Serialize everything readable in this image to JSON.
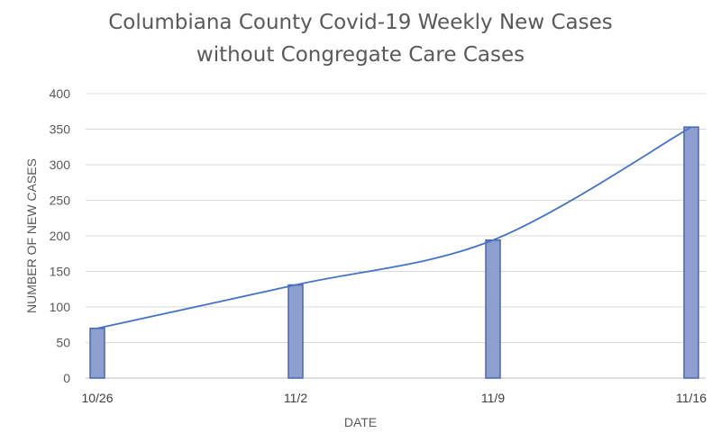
{
  "chart_data": {
    "type": "bar",
    "title": [
      "Columbiana County Covid-19 Weekly New Cases",
      "without Congregate Care Cases"
    ],
    "xlabel": "DATE",
    "ylabel": "NUMBER OF NEW CASES",
    "categories": [
      "10/26",
      "11/2",
      "11/9",
      "11/16"
    ],
    "series": [
      {
        "values": [
          70,
          131,
          194,
          353
        ],
        "color": "#8e9fcf"
      }
    ],
    "trendline": {
      "type": "exponential",
      "color": "#4472c4"
    },
    "ylim": [
      0,
      400
    ],
    "yticks": [
      0,
      50,
      100,
      150,
      200,
      250,
      300,
      350,
      400
    ],
    "grid": true,
    "legend": "none"
  }
}
